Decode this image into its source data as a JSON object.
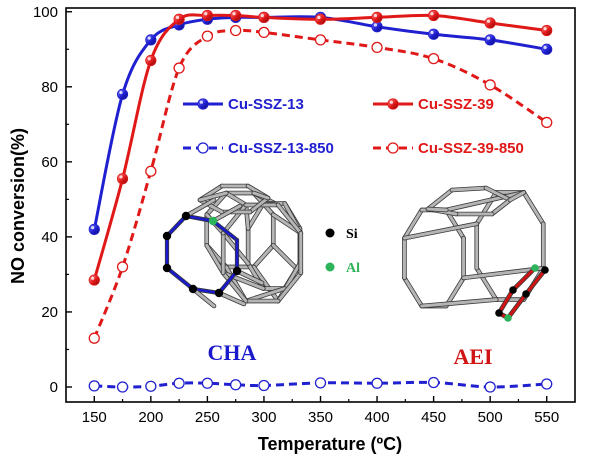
{
  "chart_data": {
    "type": "line",
    "xlabel": "Temperature (ºC)",
    "ylabel": "NO conversion(%)",
    "xlim": [
      125,
      575
    ],
    "ylim": [
      -4,
      101
    ],
    "xticks": [
      150,
      200,
      250,
      300,
      350,
      400,
      450,
      500,
      550
    ],
    "yticks": [
      0,
      20,
      40,
      60,
      80,
      100
    ],
    "grid": false,
    "legend_position": "inside-upper-middle",
    "series": [
      {
        "name": "Cu-SSZ-13",
        "color": "#2020d0",
        "line": "solid",
        "marker": "filled-circle",
        "x": [
          150,
          175,
          200,
          225,
          250,
          275,
          300,
          350,
          400,
          450,
          500,
          550
        ],
        "y": [
          42,
          78,
          92.5,
          96.5,
          98,
          98.5,
          98.5,
          98.5,
          96,
          94,
          92.5,
          90
        ]
      },
      {
        "name": "Cu-SSZ-39",
        "color": "#e01818",
        "line": "solid",
        "marker": "filled-circle",
        "x": [
          150,
          175,
          200,
          225,
          250,
          275,
          300,
          350,
          400,
          450,
          500,
          550
        ],
        "y": [
          28.5,
          55.5,
          87,
          98,
          99,
          99,
          98.5,
          98,
          98.5,
          99,
          97,
          95
        ]
      },
      {
        "name": "Cu-SSZ-13-850",
        "color": "#2020d0",
        "line": "dashed",
        "marker": "open-circle",
        "x": [
          150,
          175,
          200,
          225,
          250,
          275,
          300,
          350,
          400,
          450,
          500,
          550
        ],
        "y": [
          0.3,
          0,
          0.2,
          1,
          1,
          0.6,
          0.4,
          1.1,
          1,
          1.2,
          0,
          0.8
        ]
      },
      {
        "name": "Cu-SSZ-39-850",
        "color": "#e01818",
        "line": "dashed",
        "marker": "open-circle",
        "x": [
          150,
          175,
          200,
          225,
          250,
          275,
          300,
          350,
          400,
          450,
          500,
          550
        ],
        "y": [
          13,
          32,
          57.5,
          85,
          93.5,
          95,
          94.5,
          92.5,
          90.5,
          87.5,
          80.5,
          70.5
        ]
      }
    ],
    "annotations": {
      "si_label": "Si",
      "al_label": "Al",
      "si_color": "#000000",
      "al_color": "#2db35a",
      "cha_label": "CHA",
      "cha_color": "#1a1acc",
      "aei_label": "AEI",
      "aei_color": "#d01414"
    }
  }
}
